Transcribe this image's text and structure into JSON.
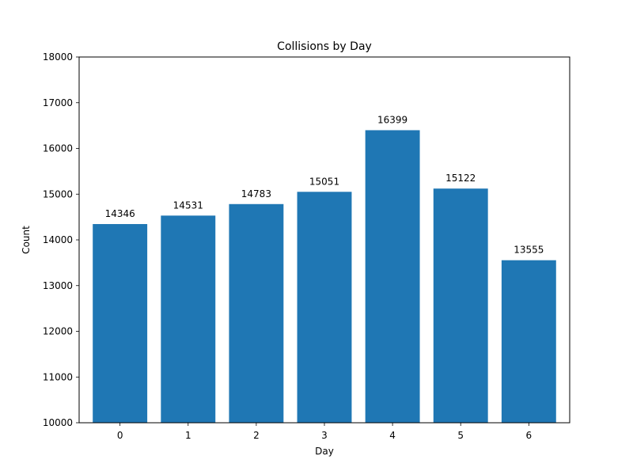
{
  "chart_data": {
    "type": "bar",
    "title": "Collisions by Day",
    "xlabel": "Day",
    "ylabel": "Count",
    "categories": [
      "0",
      "1",
      "2",
      "3",
      "4",
      "5",
      "6"
    ],
    "values": [
      14346,
      14531,
      14783,
      15051,
      16399,
      15122,
      13555
    ],
    "data_labels": [
      "14346",
      "14531",
      "14783",
      "15051",
      "16399",
      "15122",
      "13555"
    ],
    "ylim": [
      10000,
      18000
    ],
    "yticks": [
      10000,
      11000,
      12000,
      13000,
      14000,
      15000,
      16000,
      17000,
      18000
    ],
    "grid": false,
    "bar_color": "#1f77b4"
  }
}
